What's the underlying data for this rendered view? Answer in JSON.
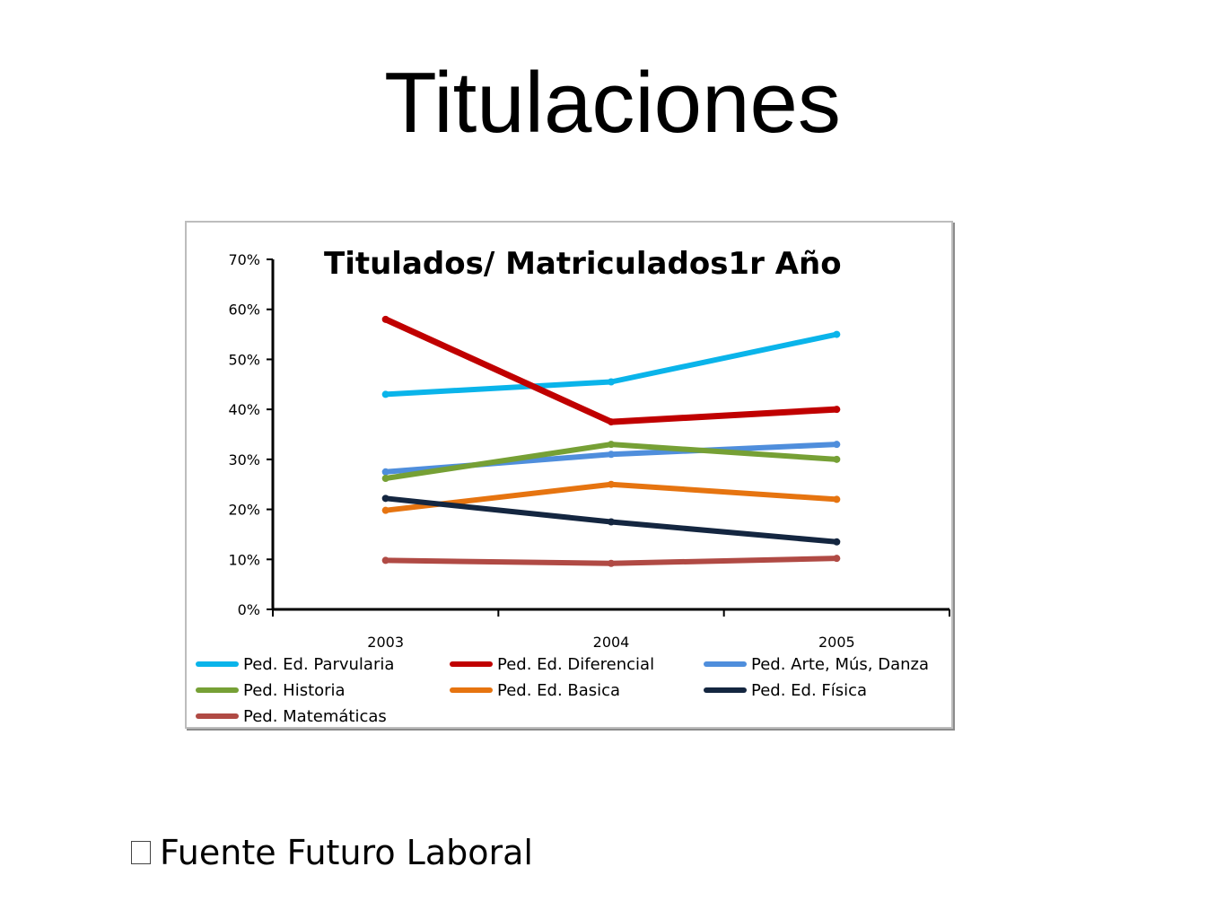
{
  "slide": {
    "title": "Titulaciones",
    "footnote": "Fuente Futuro Laboral"
  },
  "chart_data": {
    "type": "line",
    "title": "Titulados/ Matriculados1r Año",
    "categories": [
      "2003",
      "2004",
      "2005"
    ],
    "ylim": [
      0,
      0.7
    ],
    "yticks": [
      "0%",
      "10%",
      "20%",
      "30%",
      "40%",
      "50%",
      "60%",
      "70%"
    ],
    "grid": false,
    "legend_position": "bottom",
    "series": [
      {
        "name": "Ped. Ed. Parvularia",
        "color": "#0ab4ea",
        "values": [
          0.43,
          0.455,
          0.55
        ]
      },
      {
        "name": "Ped. Ed. Diferencial",
        "color": "#c00000",
        "values": [
          0.58,
          0.375,
          0.4
        ]
      },
      {
        "name": "Ped. Arte, Mús, Danza",
        "color": "#4f8edc",
        "values": [
          0.275,
          0.31,
          0.33
        ]
      },
      {
        "name": "Ped. Historia",
        "color": "#76a035",
        "values": [
          0.262,
          0.33,
          0.3
        ]
      },
      {
        "name": "Ped. Ed. Basica",
        "color": "#e67410",
        "values": [
          0.198,
          0.25,
          0.22
        ]
      },
      {
        "name": "Ped. Ed. Física",
        "color": "#142640",
        "values": [
          0.222,
          0.175,
          0.135
        ]
      },
      {
        "name": "Ped. Matemáticas",
        "color": "#b04a44",
        "values": [
          0.098,
          0.092,
          0.102
        ]
      }
    ]
  }
}
